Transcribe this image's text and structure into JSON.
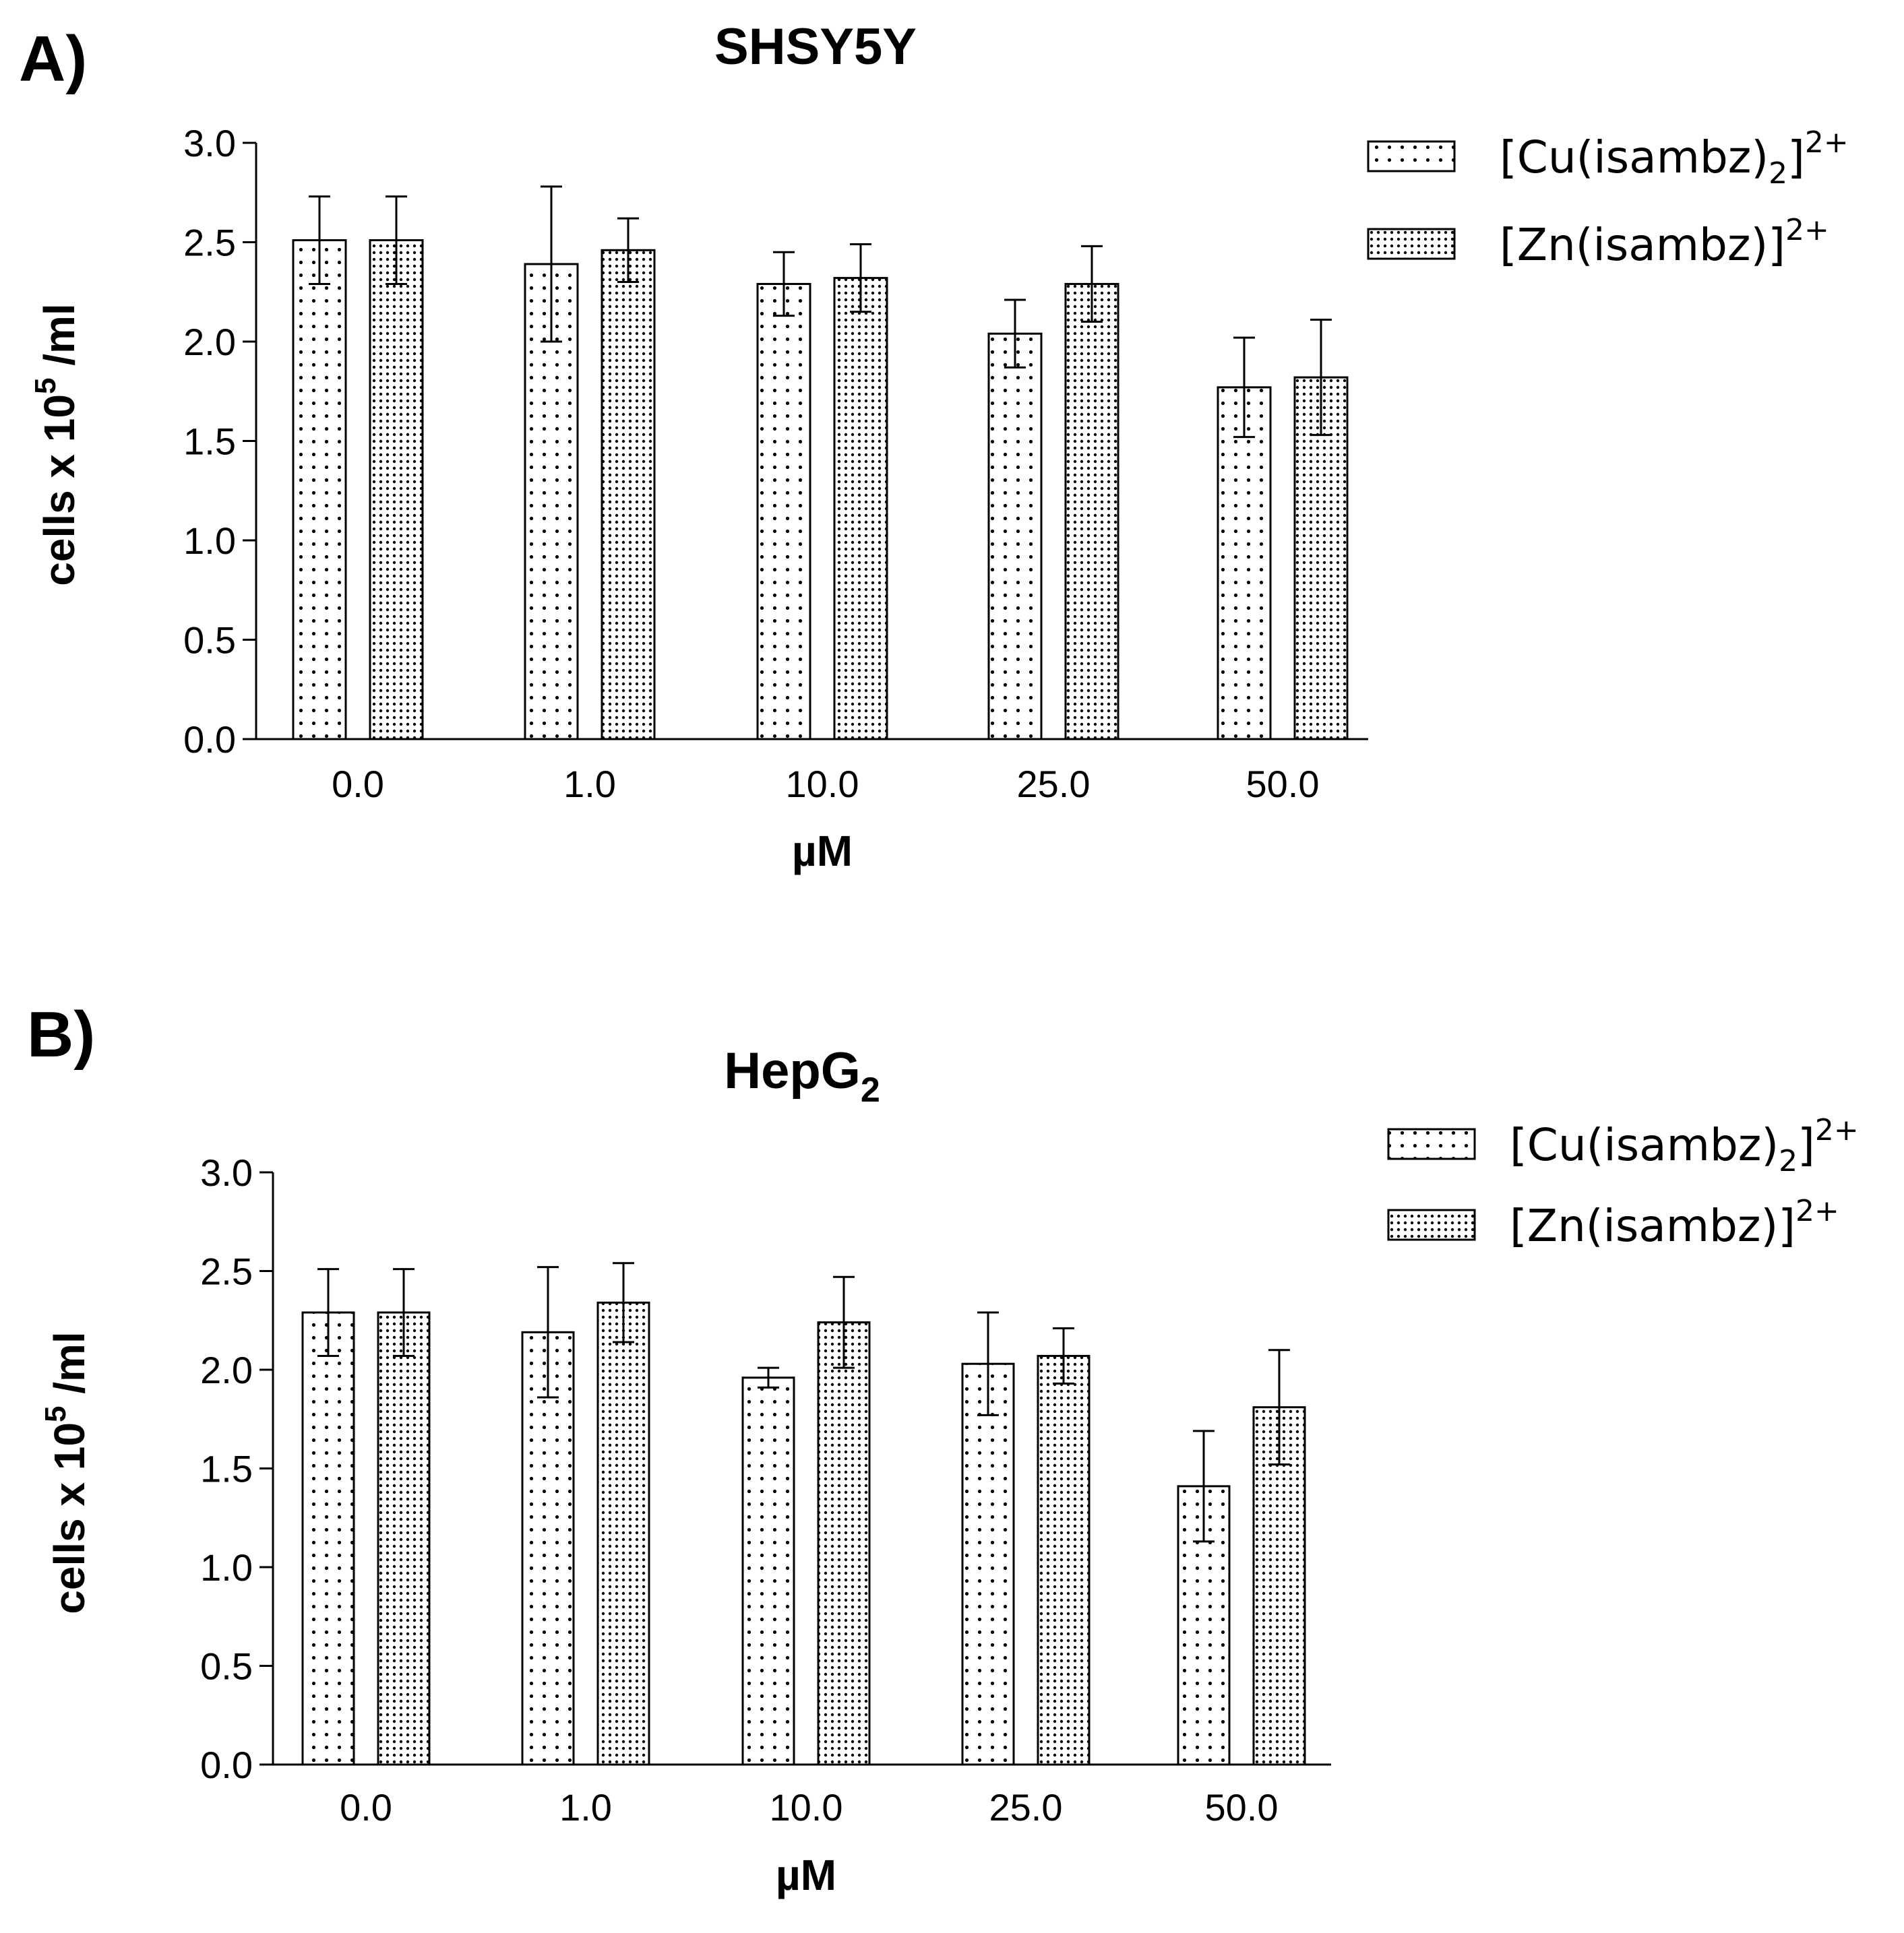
{
  "chart_data": [
    {
      "panel": "A)",
      "type": "bar",
      "title": "SHSY5Y",
      "xlabel": "µM",
      "ylabel": "cells x 10",
      "ylabel_superscript": "5",
      "ylabel_suffix": " /ml",
      "ylim": [
        0,
        3.0
      ],
      "yticks": [
        "0.0",
        "0.5",
        "1.0",
        "1.5",
        "2.0",
        "2.5",
        "3.0"
      ],
      "categories": [
        "0.0",
        "1.0",
        "10.0",
        "25.0",
        "50.0"
      ],
      "series": [
        {
          "name": "[Cu(isambz)2]2+",
          "legend_main": "[Cu(isambz)",
          "legend_sub": "2",
          "legend_close": "]",
          "legend_sup": "2+",
          "pattern": "sparse-dots",
          "values": [
            2.51,
            2.39,
            2.29,
            2.04,
            1.77
          ],
          "errors": [
            0.22,
            0.39,
            0.16,
            0.17,
            0.25
          ]
        },
        {
          "name": "[Zn(isambz)]2+",
          "legend_main": "[Zn(isambz)",
          "legend_sub": "",
          "legend_close": "]",
          "legend_sup": "2+",
          "pattern": "dense-dots",
          "values": [
            2.51,
            2.46,
            2.32,
            2.29,
            1.82
          ],
          "errors": [
            0.22,
            0.16,
            0.17,
            0.19,
            0.29
          ]
        }
      ]
    },
    {
      "panel": "B)",
      "type": "bar",
      "title": "HepG",
      "title_subscript": "2",
      "xlabel": "µM",
      "ylabel": "cells x 10",
      "ylabel_superscript": "5",
      "ylabel_suffix": " /ml",
      "ylim": [
        0,
        3.0
      ],
      "yticks": [
        "0.0",
        "0.5",
        "1.0",
        "1.5",
        "2.0",
        "2.5",
        "3.0"
      ],
      "categories": [
        "0.0",
        "1.0",
        "10.0",
        "25.0",
        "50.0"
      ],
      "series": [
        {
          "name": "[Cu(isambz)2]2+",
          "legend_main": "[Cu(isambz)",
          "legend_sub": "2",
          "legend_close": "]",
          "legend_sup": "2+",
          "pattern": "sparse-dots",
          "values": [
            2.29,
            2.19,
            1.96,
            2.03,
            1.41
          ],
          "errors": [
            0.22,
            0.33,
            0.05,
            0.26,
            0.28
          ]
        },
        {
          "name": "[Zn(isambz)]2+",
          "legend_main": "[Zn(isambz)",
          "legend_sub": "",
          "legend_close": "]",
          "legend_sup": "2+",
          "pattern": "dense-dots",
          "values": [
            2.29,
            2.34,
            2.24,
            2.07,
            1.81
          ],
          "errors": [
            0.22,
            0.2,
            0.23,
            0.14,
            0.29
          ]
        }
      ]
    }
  ]
}
